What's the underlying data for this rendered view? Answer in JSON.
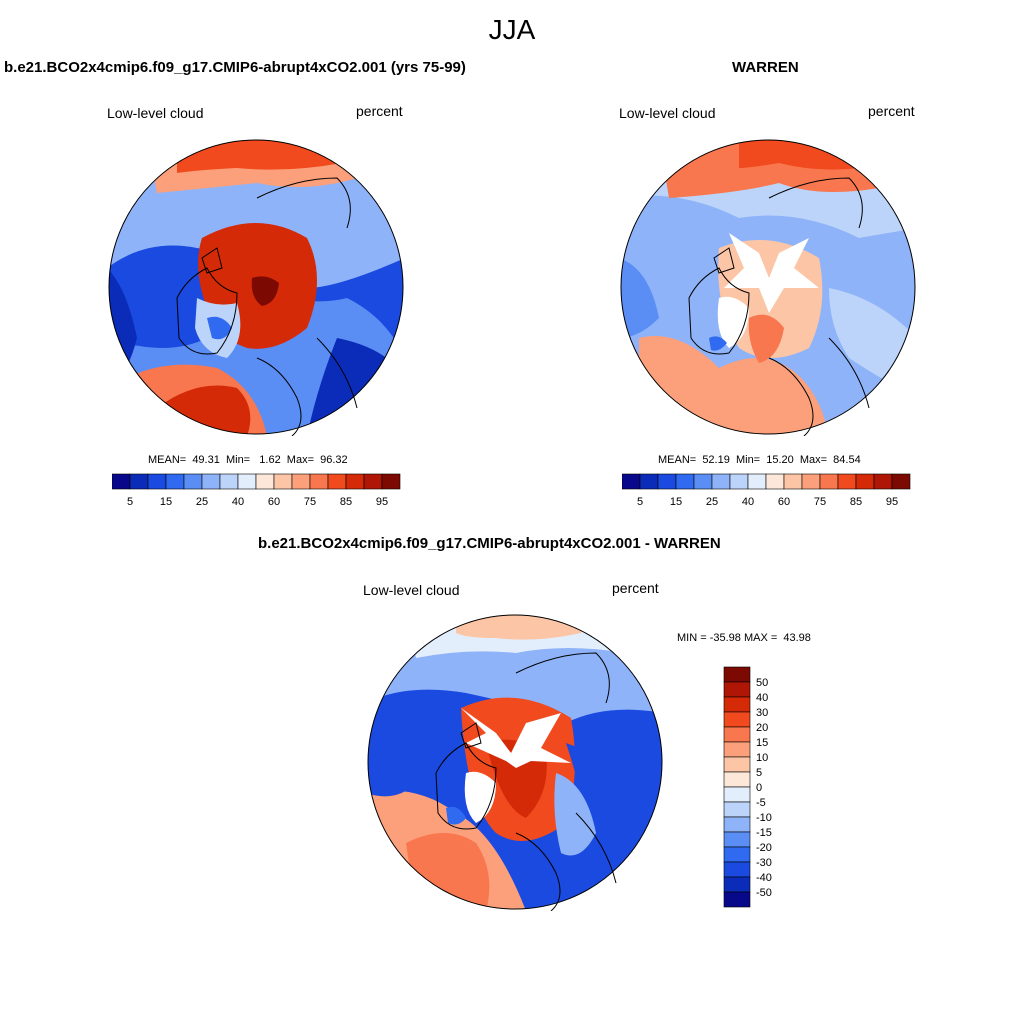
{
  "season": "JJA",
  "panels": [
    {
      "id": "case",
      "title": "b.e21.BCO2x4cmip6.f09_g17.CMIP6-abrupt4xCO2.001 (yrs 75-99)",
      "variable": "Low-level cloud",
      "units": "percent",
      "stats": "MEAN=  49.31  Min=   1.62  Max=  96.32"
    },
    {
      "id": "obs",
      "title": "WARREN",
      "variable": "Low-level cloud",
      "units": "percent",
      "stats": "MEAN=  52.19  Min=  15.20  Max=  84.54"
    },
    {
      "id": "diff",
      "title": "b.e21.BCO2x4cmip6.f09_g17.CMIP6-abrupt4xCO2.001 - WARREN",
      "variable": "Low-level cloud",
      "units": "percent",
      "stats": "MIN = -35.98 MAX =  43.98"
    }
  ],
  "colorbars": {
    "field": {
      "labels": [
        "5",
        "15",
        "25",
        "40",
        "60",
        "75",
        "85",
        "95"
      ],
      "colors": [
        "#08088a",
        "#0b2cb8",
        "#1a4ae0",
        "#2f6af0",
        "#5a8ef5",
        "#8fb3f8",
        "#bcd4fa",
        "#e3eefd",
        "#fde7d8",
        "#fcc5a6",
        "#fba07a",
        "#f8774e",
        "#f04a1e",
        "#d52a08",
        "#b01605",
        "#7d0a02"
      ]
    },
    "diff": {
      "labels": [
        "50",
        "40",
        "30",
        "20",
        "15",
        "10",
        "5",
        "0",
        "-5",
        "-10",
        "-15",
        "-20",
        "-30",
        "-40",
        "-50"
      ],
      "colors": [
        "#7d0a02",
        "#b01605",
        "#d52a08",
        "#f04a1e",
        "#f8774e",
        "#fba07a",
        "#fcc5a6",
        "#fde7d8",
        "#e3eefd",
        "#bcd4fa",
        "#8fb3f8",
        "#5a8ef5",
        "#2f6af0",
        "#1a4ae0",
        "#0b2cb8",
        "#08088a"
      ]
    }
  }
}
